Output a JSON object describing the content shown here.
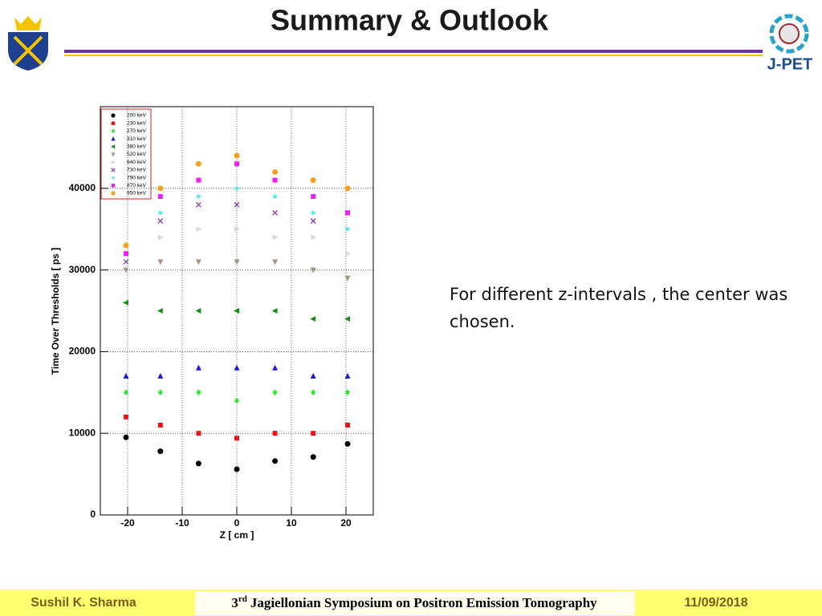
{
  "slide": {
    "title": "Summary & Outlook",
    "logo_text": "J-PET",
    "text": "For different z-intervals , the center was chosen.",
    "footer": {
      "author": "Sushil K. Sharma",
      "event_number": "3",
      "event_suffix": "rd",
      "event_name": "Jagiellonian Symposium on Positron Emission Tomography",
      "date": "11/09/2018"
    }
  },
  "chart_data": {
    "type": "scatter",
    "x_label": "Z  [ cm ]",
    "y_label": "Time Over Thresholds [ ps ]",
    "x": [
      -20.3,
      -14,
      -7,
      0,
      7,
      14,
      20.3
    ],
    "xlim": [
      -25,
      25
    ],
    "xticks": [
      -20,
      -10,
      0,
      10,
      20
    ],
    "ylim": [
      0,
      50000
    ],
    "yticks": [
      0,
      10000,
      20000,
      30000,
      40000
    ],
    "grid": true,
    "legend": "upper left",
    "series": [
      {
        "name": "200 keV",
        "color": "#000000",
        "marker": "circle",
        "values": [
          9500,
          7800,
          6300,
          5600,
          6600,
          7100,
          8700
        ]
      },
      {
        "name": "230 keV",
        "color": "#e8141a",
        "marker": "square",
        "values": [
          12000,
          11000,
          10000,
          9400,
          10000,
          10000,
          11000
        ]
      },
      {
        "name": "270 keV",
        "color": "#33e633",
        "marker": "diamond",
        "values": [
          15000,
          15000,
          15000,
          14000,
          15000,
          15000,
          15000
        ]
      },
      {
        "name": "310 keV",
        "color": "#1a1ad9",
        "marker": "triangle-up",
        "values": [
          17000,
          17000,
          18000,
          18000,
          18000,
          17000,
          17000
        ]
      },
      {
        "name": "380 keV",
        "color": "#1a8c1a",
        "marker": "triangle-left",
        "values": [
          26000,
          25000,
          25000,
          25000,
          25000,
          24000,
          24000
        ]
      },
      {
        "name": "520 keV",
        "color": "#a69580",
        "marker": "triangle-down",
        "values": [
          30000,
          31000,
          31000,
          31000,
          31000,
          30000,
          29000
        ]
      },
      {
        "name": "640 keV",
        "color": "#d9d9d9",
        "marker": "triangle-right",
        "values": [
          32000,
          34000,
          35000,
          35000,
          34000,
          34000,
          32000
        ]
      },
      {
        "name": "730 keV",
        "color": "#8c3cb4",
        "marker": "cross",
        "values": [
          31000,
          36000,
          38000,
          38000,
          37000,
          36000,
          37000
        ]
      },
      {
        "name": "790 keV",
        "color": "#4de6f2",
        "marker": "star",
        "values": [
          32000,
          37000,
          39000,
          40000,
          39000,
          37000,
          35000
        ]
      },
      {
        "name": "870 keV",
        "color": "#f01ef0",
        "marker": "square",
        "values": [
          32000,
          39000,
          41000,
          43000,
          41000,
          39000,
          37000
        ]
      },
      {
        "name": "950 keV",
        "color": "#f5a01e",
        "marker": "circle",
        "values": [
          33000,
          40000,
          43000,
          44000,
          42000,
          41000,
          40000
        ]
      }
    ]
  }
}
